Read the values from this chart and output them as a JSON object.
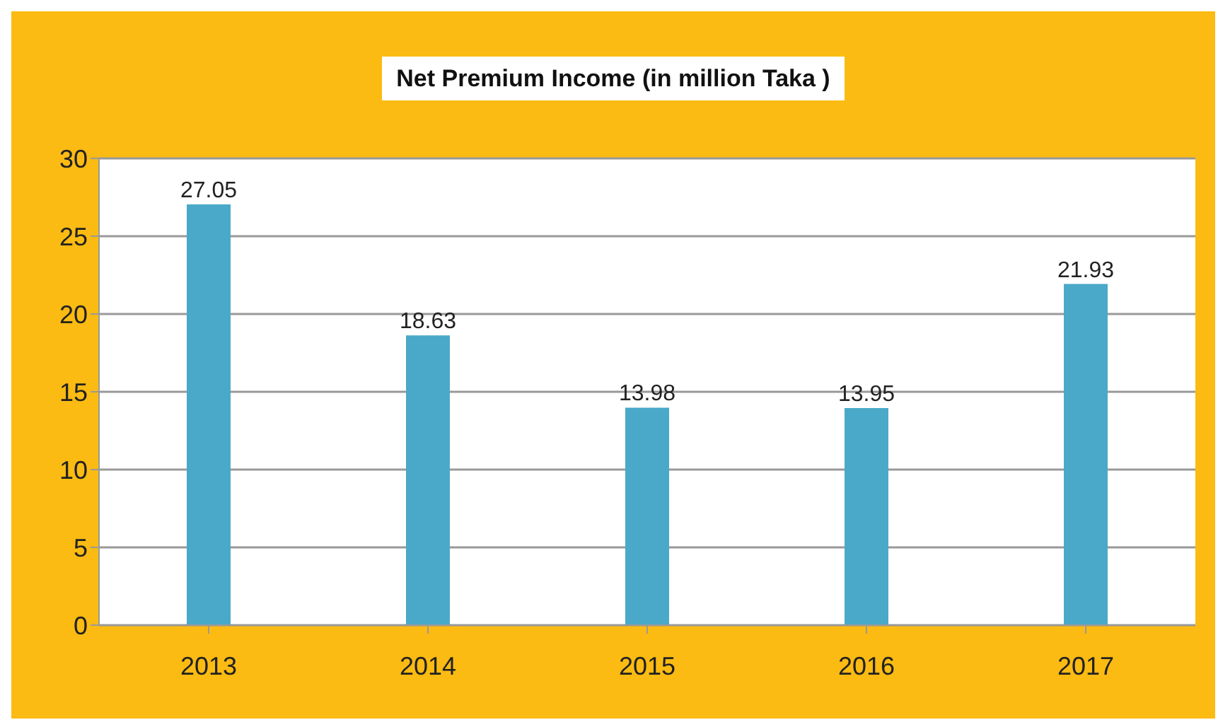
{
  "chart_data": {
    "type": "bar",
    "title": "Net Premium Income (in million Taka )",
    "categories": [
      "2013",
      "2014",
      "2015",
      "2016",
      "2017"
    ],
    "values": [
      27.05,
      18.63,
      13.98,
      13.95,
      21.93
    ],
    "color": "#4aa9c8",
    "ylim": [
      0,
      30
    ],
    "yticks": [
      0,
      5,
      10,
      15,
      20,
      25,
      30
    ],
    "grid": "y",
    "data_labels": true
  }
}
